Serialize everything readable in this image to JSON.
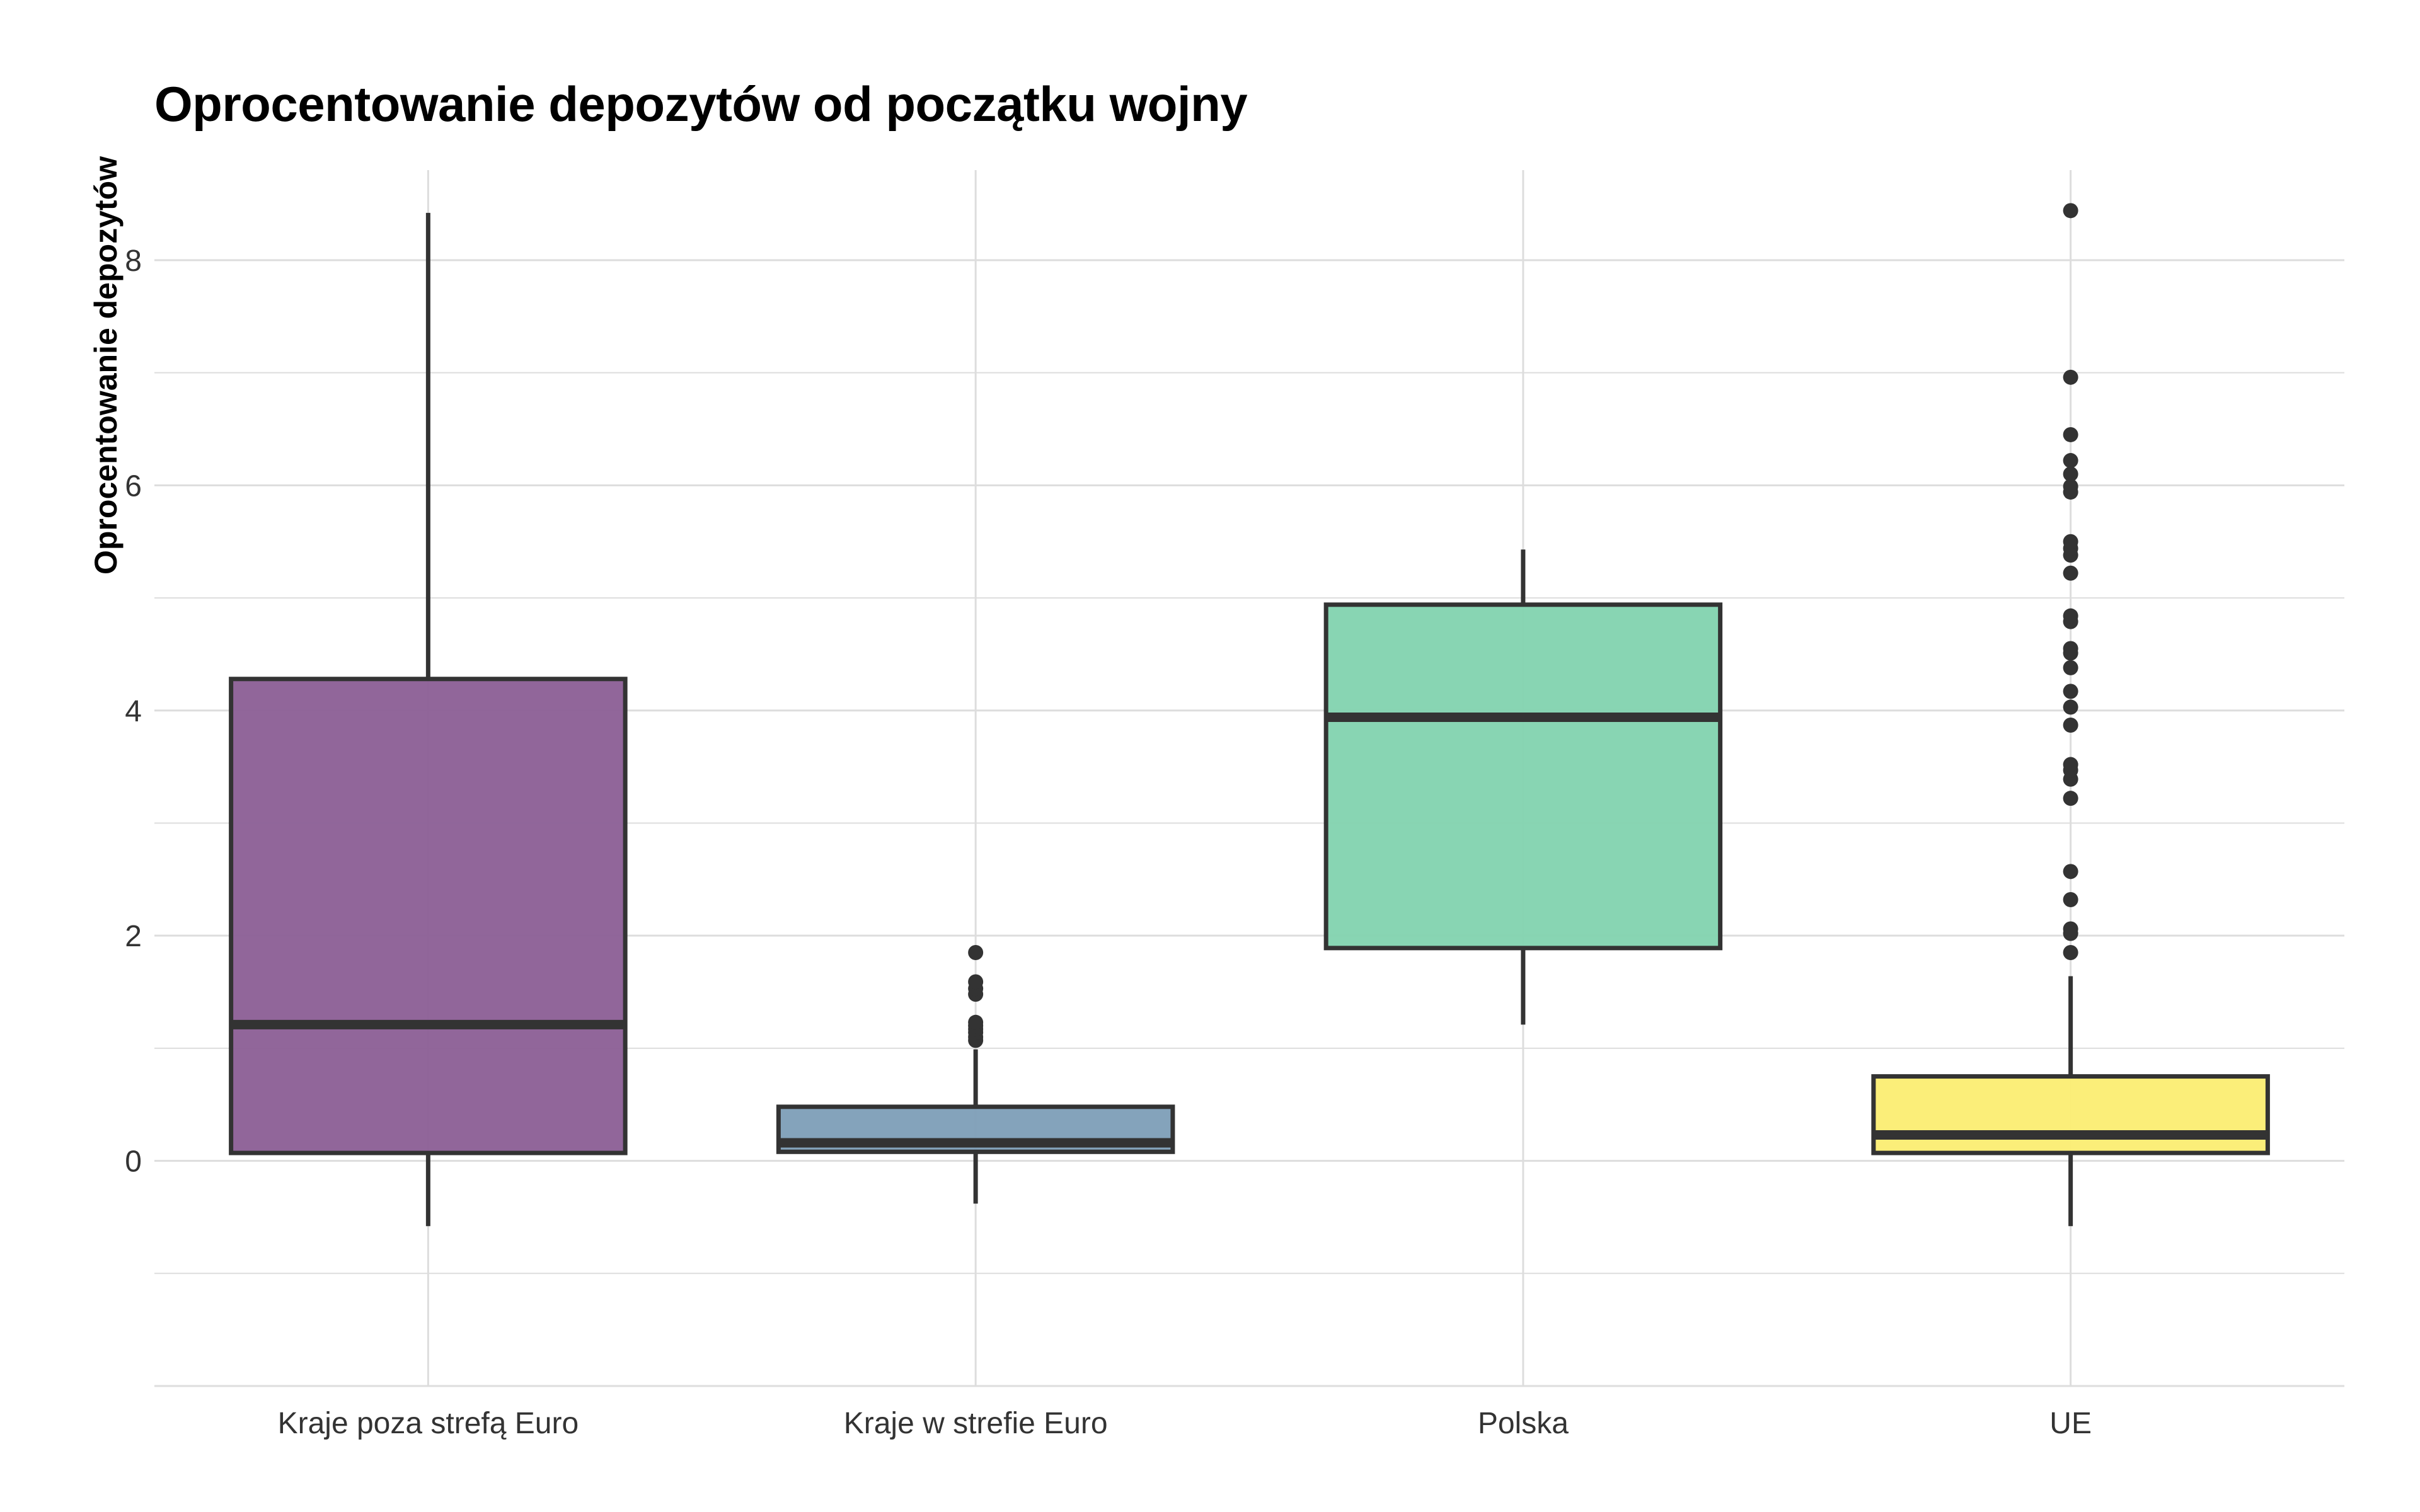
{
  "chart_data": {
    "type": "boxplot",
    "title": "Oprocentowanie depozytów od początku wojny",
    "xlabel": "",
    "ylabel": "Oprocentowanie depozytów",
    "ylim": [
      -2,
      8.8
    ],
    "y_ticks": [
      0,
      2,
      4,
      6,
      8
    ],
    "grid": true,
    "legend": "none",
    "categories": [
      "Kraje poza strefą Euro",
      "Kraje w strefie Euro",
      "Polska",
      "UE"
    ],
    "boxes": [
      {
        "category": "Kraje poza strefą Euro",
        "color": "#8B5E95",
        "whisker_low": -0.58,
        "q1": 0.07,
        "median": 1.21,
        "q3": 4.28,
        "whisker_high": 8.42,
        "outliers": []
      },
      {
        "category": "Kraje w strefie Euro",
        "color": "#7D9EB7",
        "whisker_low": -0.38,
        "q1": 0.08,
        "median": 0.16,
        "q3": 0.48,
        "whisker_high": 0.99,
        "outliers": [
          1.07,
          1.1,
          1.14,
          1.17,
          1.2,
          1.23,
          1.48,
          1.53,
          1.59,
          1.85
        ]
      },
      {
        "category": "Polska",
        "color": "#82D3AF",
        "whisker_low": 1.21,
        "q1": 1.89,
        "median": 3.94,
        "q3": 4.94,
        "whisker_high": 5.43,
        "outliers": []
      },
      {
        "category": "UE",
        "color": "#FBED72",
        "whisker_low": -0.58,
        "q1": 0.07,
        "median": 0.23,
        "q3": 0.75,
        "whisker_high": 1.64,
        "outliers": [
          1.85,
          2.02,
          2.06,
          2.32,
          2.57,
          3.22,
          3.39,
          3.47,
          3.52,
          3.87,
          4.03,
          4.17,
          4.38,
          4.51,
          4.55,
          4.79,
          4.84,
          5.22,
          5.38,
          5.44,
          5.5,
          5.94,
          5.99,
          6.1,
          6.22,
          6.45,
          6.96,
          8.44
        ]
      }
    ]
  },
  "style": {
    "grid_color": "#dddddd",
    "box_outline": "#333333",
    "tick_label_color": "#333333"
  }
}
